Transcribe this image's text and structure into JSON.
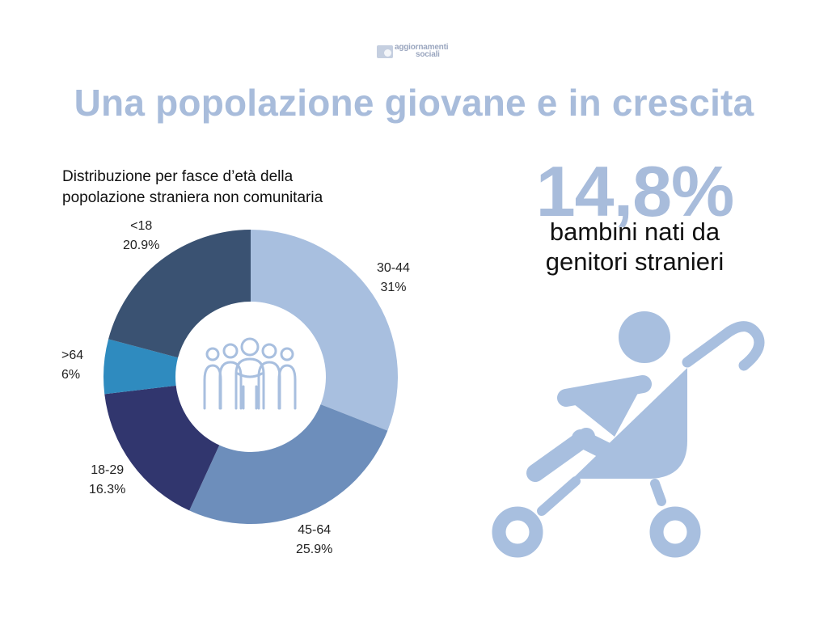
{
  "logo": {
    "line1": "aggiornamenti",
    "line2": "sociali",
    "mark_icon": "aggiornamenti-sociali-logo-mark"
  },
  "title": "Una popolazione giovane e in crescita",
  "chart_data": {
    "type": "pie",
    "variant": "donut",
    "title": "Distribuzione per fasce d’età della popolazione straniera non comunitaria",
    "title_lines": [
      "Distribuzione per fasce d’età della",
      "popolazione straniera non comunitaria"
    ],
    "center_icon": "people-group-icon",
    "slices": [
      {
        "label": "30-44",
        "value": 31,
        "value_label": "31%",
        "color": "#a8bfdf"
      },
      {
        "label": "45-64",
        "value": 25.9,
        "value_label": "25.9%",
        "color": "#6d8ebb"
      },
      {
        "label": "18-29",
        "value": 16.3,
        "value_label": "16.3%",
        "color": "#31366e"
      },
      {
        "label": ">64",
        "value": 6,
        "value_label": "6%",
        "color": "#2f8bbf"
      },
      {
        "label": "<18",
        "value": 20.9,
        "value_label": "20.9%",
        "color": "#3a5272"
      }
    ]
  },
  "stat": {
    "value": "14,8%",
    "caption_line1": "bambini nati da",
    "caption_line2": "genitori stranieri",
    "icon": "baby-stroller-icon",
    "color": "#a8bfdf"
  }
}
